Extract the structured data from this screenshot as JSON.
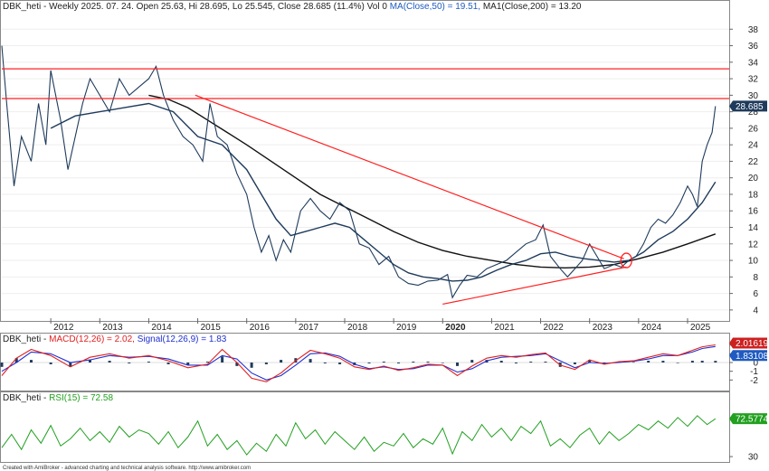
{
  "colors": {
    "price": "#1f3b5c",
    "ma": "#1f3b5c",
    "ma1": "#111111",
    "trend": "#ff2020",
    "macd": "#e02020",
    "signal": "#2030d0",
    "histogram": "#1f3b5c",
    "rsi": "#22a020",
    "price_badge": "#1f3b5c",
    "macd_badge": "#cc2020",
    "signal_badge": "#1f5bc0",
    "rsi_badge": "#22a020"
  },
  "chart_data": [
    {
      "type": "line",
      "panel": "price",
      "header": {
        "prefix": "DBK_heti - Weekly 2025. 07. 24. Open 25.63, Hi 28.695, Lo 25.545, Close 28.685 (11.4%) Vol 0",
        "ma_label": "MA(Close,50) = 19.51,",
        "ma1_label": "MA1(Close,200) = 13.20"
      },
      "last_price_label": "28.685",
      "last_price": 28.685,
      "ylim": [
        3,
        40
      ],
      "y_ticks": [
        4,
        6,
        8,
        10,
        12,
        14,
        16,
        18,
        20,
        22,
        24,
        26,
        28,
        30,
        32,
        34,
        36,
        38
      ],
      "x_start": 2011.0,
      "x_end": 2025.85,
      "x_ticks": [
        {
          "label": "2012",
          "x": 2012.0,
          "bold": false
        },
        {
          "label": "2013",
          "x": 2013.0,
          "bold": false
        },
        {
          "label": "2014",
          "x": 2014.0,
          "bold": false
        },
        {
          "label": "2015",
          "x": 2015.0,
          "bold": false
        },
        {
          "label": "2016",
          "x": 2016.0,
          "bold": false
        },
        {
          "label": "2017",
          "x": 2017.0,
          "bold": false
        },
        {
          "label": "2018",
          "x": 2018.0,
          "bold": false
        },
        {
          "label": "2019",
          "x": 2019.0,
          "bold": false
        },
        {
          "label": "2020",
          "x": 2020.0,
          "bold": true
        },
        {
          "label": "2021",
          "x": 2021.0,
          "bold": false
        },
        {
          "label": "2022",
          "x": 2022.0,
          "bold": false
        },
        {
          "label": "2023",
          "x": 2023.0,
          "bold": false
        },
        {
          "label": "2024",
          "x": 2024.0,
          "bold": false
        },
        {
          "label": "2025",
          "x": 2025.0,
          "bold": false
        }
      ],
      "price_series": {
        "x": [
          2011.0,
          2011.1,
          2011.25,
          2011.4,
          2011.6,
          2011.75,
          2011.9,
          2012.0,
          2012.2,
          2012.35,
          2012.5,
          2012.65,
          2012.8,
          2013.0,
          2013.2,
          2013.4,
          2013.6,
          2013.8,
          2014.0,
          2014.15,
          2014.3,
          2014.5,
          2014.7,
          2014.9,
          2015.1,
          2015.25,
          2015.4,
          2015.6,
          2015.8,
          2016.0,
          2016.15,
          2016.3,
          2016.45,
          2016.6,
          2016.75,
          2016.9,
          2017.1,
          2017.3,
          2017.5,
          2017.7,
          2017.9,
          2018.1,
          2018.3,
          2018.5,
          2018.7,
          2018.9,
          2019.1,
          2019.3,
          2019.5,
          2019.7,
          2019.9,
          2020.1,
          2020.2,
          2020.35,
          2020.5,
          2020.7,
          2020.9,
          2021.1,
          2021.3,
          2021.5,
          2021.7,
          2021.9,
          2022.05,
          2022.2,
          2022.4,
          2022.55,
          2022.7,
          2022.85,
          2023.0,
          2023.15,
          2023.3,
          2023.5,
          2023.65,
          2023.8,
          2023.95,
          2024.1,
          2024.25,
          2024.4,
          2024.55,
          2024.7,
          2024.85,
          2025.0,
          2025.1,
          2025.2,
          2025.3,
          2025.4,
          2025.5,
          2025.57
        ],
        "values": [
          36.0,
          29.0,
          19.0,
          25.0,
          22.0,
          29.0,
          24.0,
          33.0,
          27.0,
          21.0,
          25.0,
          29.0,
          32.0,
          30.0,
          28.0,
          32.0,
          30.0,
          31.0,
          32.0,
          33.5,
          30.0,
          27.0,
          25.0,
          24.0,
          22.0,
          29.0,
          25.0,
          24.0,
          20.5,
          18.0,
          14.0,
          11.0,
          13.0,
          10.0,
          12.5,
          11.0,
          16.0,
          17.5,
          16.0,
          15.0,
          17.0,
          16.0,
          12.0,
          11.5,
          9.5,
          10.5,
          8.0,
          7.2,
          7.0,
          7.5,
          7.6,
          8.3,
          5.5,
          7.0,
          8.2,
          8.0,
          9.0,
          9.5,
          10.0,
          11.0,
          12.0,
          12.5,
          14.3,
          10.5,
          9.0,
          8.0,
          9.0,
          10.0,
          12.0,
          10.5,
          9.0,
          9.5,
          9.2,
          10.0,
          10.5,
          12.0,
          14.0,
          15.0,
          14.5,
          15.5,
          17.0,
          19.0,
          18.0,
          16.5,
          22.0,
          24.0,
          25.5,
          28.685
        ]
      },
      "ma_series": {
        "x": [
          2012.0,
          2012.5,
          2013.0,
          2013.5,
          2014.0,
          2014.5,
          2015.0,
          2015.5,
          2016.0,
          2016.3,
          2016.6,
          2016.9,
          2017.2,
          2017.5,
          2017.8,
          2018.1,
          2018.4,
          2018.7,
          2019.0,
          2019.3,
          2019.6,
          2019.9,
          2020.2,
          2020.5,
          2020.8,
          2021.1,
          2021.4,
          2021.7,
          2022.0,
          2022.3,
          2022.6,
          2022.9,
          2023.2,
          2023.5,
          2023.8,
          2024.1,
          2024.4,
          2024.7,
          2025.0,
          2025.3,
          2025.57
        ],
        "values": [
          26.0,
          27.5,
          28.0,
          28.5,
          29.0,
          28.0,
          25.0,
          24.0,
          21.0,
          18.0,
          15.0,
          13.0,
          13.5,
          14.0,
          14.5,
          14.0,
          12.5,
          11.0,
          9.5,
          8.5,
          8.0,
          7.8,
          7.5,
          7.6,
          8.0,
          8.8,
          9.5,
          10.0,
          10.8,
          11.0,
          10.5,
          10.2,
          10.0,
          9.8,
          10.0,
          11.0,
          12.5,
          13.5,
          15.0,
          17.0,
          19.51
        ]
      },
      "ma1_series": {
        "x": [
          2014.0,
          2014.4,
          2014.8,
          2015.2,
          2015.6,
          2016.0,
          2016.5,
          2017.0,
          2017.5,
          2018.0,
          2018.5,
          2019.0,
          2019.5,
          2020.0,
          2020.5,
          2021.0,
          2021.5,
          2022.0,
          2022.5,
          2023.0,
          2023.5,
          2024.0,
          2024.5,
          2025.0,
          2025.57
        ],
        "values": [
          30.0,
          29.5,
          28.5,
          27.0,
          25.5,
          24.0,
          22.0,
          20.0,
          18.0,
          16.5,
          15.0,
          13.5,
          12.2,
          11.2,
          10.5,
          10.0,
          9.5,
          9.2,
          9.1,
          9.2,
          9.5,
          10.2,
          11.0,
          12.0,
          13.2
        ]
      },
      "horizontal_lines": [
        33.2,
        29.6
      ],
      "trend_lines": [
        {
          "x1": 2014.95,
          "y1": 30.0,
          "x2": 2023.7,
          "y2": 10.2
        },
        {
          "x1": 2020.0,
          "y1": 4.7,
          "x2": 2023.75,
          "y2": 9.2
        }
      ],
      "highlight_circle": {
        "x": 2023.75,
        "y": 10.0
      }
    },
    {
      "type": "line",
      "panel": "macd",
      "header": {
        "prefix": "DBK_heti -",
        "macd_label": "MACD(12,26) = 2.02,",
        "signal_label": "Signal(12,26,9) = 1.83"
      },
      "ylim": [
        -3,
        3
      ],
      "y_ticks": [
        2,
        1,
        0,
        -1,
        -2
      ],
      "macd_badge_label": "2.01619",
      "macd_value": 2.01619,
      "signal_badge_label": "1.83108",
      "signal_value": 1.83108,
      "macd_series": {
        "x": [
          2011.0,
          2011.3,
          2011.6,
          2012.0,
          2012.4,
          2012.8,
          2013.2,
          2013.6,
          2014.0,
          2014.4,
          2014.8,
          2015.2,
          2015.5,
          2015.8,
          2016.1,
          2016.4,
          2016.7,
          2017.0,
          2017.3,
          2017.6,
          2017.9,
          2018.2,
          2018.5,
          2018.8,
          2019.1,
          2019.4,
          2019.7,
          2020.0,
          2020.3,
          2020.6,
          2020.9,
          2021.2,
          2021.5,
          2021.8,
          2022.1,
          2022.4,
          2022.7,
          2023.0,
          2023.3,
          2023.6,
          2023.9,
          2024.2,
          2024.5,
          2024.8,
          2025.1,
          2025.3,
          2025.57
        ],
        "values": [
          -1.5,
          0.5,
          1.5,
          0.8,
          -0.5,
          0.6,
          1.0,
          0.5,
          0.8,
          0.2,
          -0.6,
          -0.2,
          1.5,
          0.0,
          -1.8,
          -2.2,
          -1.2,
          0.2,
          1.4,
          1.0,
          0.5,
          -0.5,
          -0.8,
          -0.4,
          -0.9,
          -0.6,
          -0.2,
          -0.3,
          -1.5,
          -0.4,
          0.5,
          0.8,
          0.6,
          0.9,
          1.1,
          -0.3,
          -0.8,
          0.3,
          -0.2,
          0.1,
          0.2,
          0.6,
          1.0,
          0.8,
          1.4,
          1.8,
          2.02
        ]
      },
      "signal_series": {
        "x": [
          2011.0,
          2011.3,
          2011.6,
          2012.0,
          2012.4,
          2012.8,
          2013.2,
          2013.6,
          2014.0,
          2014.4,
          2014.8,
          2015.2,
          2015.5,
          2015.8,
          2016.1,
          2016.4,
          2016.7,
          2017.0,
          2017.3,
          2017.6,
          2017.9,
          2018.2,
          2018.5,
          2018.8,
          2019.1,
          2019.4,
          2019.7,
          2020.0,
          2020.3,
          2020.6,
          2020.9,
          2021.2,
          2021.5,
          2021.8,
          2022.1,
          2022.4,
          2022.7,
          2023.0,
          2023.3,
          2023.6,
          2023.9,
          2024.2,
          2024.5,
          2024.8,
          2025.1,
          2025.3,
          2025.57
        ],
        "values": [
          -1.0,
          0.0,
          1.2,
          1.0,
          0.0,
          0.3,
          0.8,
          0.6,
          0.7,
          0.4,
          -0.3,
          -0.3,
          0.8,
          0.4,
          -1.2,
          -2.0,
          -1.5,
          -0.3,
          1.0,
          1.1,
          0.7,
          -0.2,
          -0.7,
          -0.5,
          -0.8,
          -0.7,
          -0.3,
          -0.3,
          -1.1,
          -0.7,
          0.2,
          0.6,
          0.7,
          0.8,
          1.0,
          0.2,
          -0.6,
          0.0,
          -0.1,
          0.0,
          0.15,
          0.4,
          0.8,
          0.8,
          1.2,
          1.6,
          1.83
        ]
      }
    },
    {
      "type": "line",
      "panel": "rsi",
      "header": {
        "prefix": "DBK_heti -",
        "rsi_label": "RSI(15) = 72.58"
      },
      "ylim": [
        25,
        90
      ],
      "y_ticks": [
        30
      ],
      "rsi_badge_label": "72.5774",
      "rsi_value": 72.5774,
      "rsi_series": {
        "x": [
          2011.0,
          2011.2,
          2011.4,
          2011.6,
          2011.8,
          2012.0,
          2012.2,
          2012.4,
          2012.6,
          2012.8,
          2013.0,
          2013.2,
          2013.4,
          2013.6,
          2013.8,
          2014.0,
          2014.2,
          2014.4,
          2014.6,
          2014.8,
          2015.0,
          2015.2,
          2015.4,
          2015.6,
          2015.8,
          2016.0,
          2016.2,
          2016.4,
          2016.6,
          2016.8,
          2017.0,
          2017.2,
          2017.4,
          2017.6,
          2017.8,
          2018.0,
          2018.2,
          2018.4,
          2018.6,
          2018.8,
          2019.0,
          2019.2,
          2019.4,
          2019.6,
          2019.8,
          2020.0,
          2020.2,
          2020.4,
          2020.6,
          2020.8,
          2021.0,
          2021.2,
          2021.4,
          2021.6,
          2021.8,
          2022.0,
          2022.2,
          2022.4,
          2022.6,
          2022.8,
          2023.0,
          2023.2,
          2023.4,
          2023.6,
          2023.8,
          2024.0,
          2024.2,
          2024.4,
          2024.6,
          2024.8,
          2025.0,
          2025.2,
          2025.4,
          2025.57
        ],
        "values": [
          40,
          55,
          38,
          60,
          45,
          65,
          42,
          50,
          62,
          48,
          58,
          46,
          64,
          52,
          60,
          56,
          44,
          58,
          40,
          52,
          70,
          42,
          55,
          38,
          48,
          32,
          45,
          36,
          55,
          42,
          68,
          50,
          60,
          44,
          58,
          48,
          38,
          52,
          36,
          46,
          42,
          56,
          40,
          50,
          44,
          62,
          33,
          58,
          48,
          66,
          52,
          62,
          48,
          64,
          56,
          70,
          42,
          50,
          40,
          54,
          62,
          44,
          58,
          48,
          56,
          66,
          60,
          70,
          62,
          74,
          64,
          76,
          66,
          72.58
        ]
      }
    }
  ],
  "footer": {
    "credit": "Created with AmiBroker - advanced charting and technical analysis software. http://www.amibroker.com"
  }
}
